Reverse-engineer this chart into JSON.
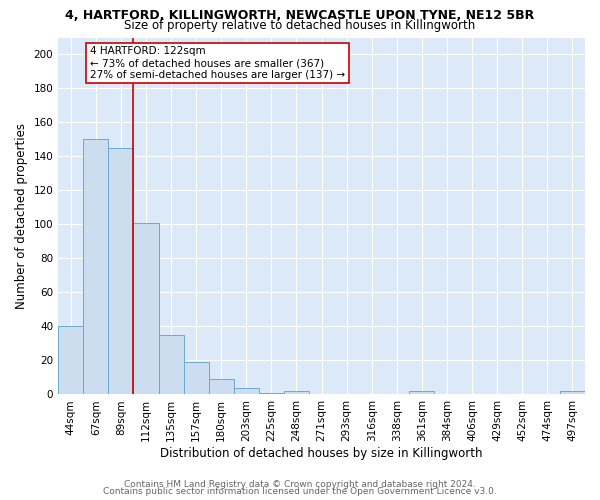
{
  "title_line1": "4, HARTFORD, KILLINGWORTH, NEWCASTLE UPON TYNE, NE12 5BR",
  "title_line2": "Size of property relative to detached houses in Killingworth",
  "xlabel": "Distribution of detached houses by size in Killingworth",
  "ylabel": "Number of detached properties",
  "categories": [
    "44sqm",
    "67sqm",
    "89sqm",
    "112sqm",
    "135sqm",
    "157sqm",
    "180sqm",
    "203sqm",
    "225sqm",
    "248sqm",
    "271sqm",
    "293sqm",
    "316sqm",
    "338sqm",
    "361sqm",
    "384sqm",
    "406sqm",
    "429sqm",
    "452sqm",
    "474sqm",
    "497sqm"
  ],
  "values": [
    40,
    150,
    145,
    101,
    35,
    19,
    9,
    4,
    1,
    2,
    0,
    0,
    0,
    0,
    2,
    0,
    0,
    0,
    0,
    0,
    2
  ],
  "bar_color": "#ccddf0",
  "bar_edge_color": "#6aaad4",
  "red_line_x": 2.5,
  "annotation_text_line1": "4 HARTFORD: 122sqm",
  "annotation_text_line2": "← 73% of detached houses are smaller (367)",
  "annotation_text_line3": "27% of semi-detached houses are larger (137) →",
  "annotation_box_color": "white",
  "annotation_box_edge_color": "#cc0000",
  "red_line_color": "#cc0000",
  "ylim": [
    0,
    210
  ],
  "yticks": [
    0,
    20,
    40,
    60,
    80,
    100,
    120,
    140,
    160,
    180,
    200
  ],
  "bg_color": "#dce9f8",
  "grid_color": "white",
  "footer_line1": "Contains HM Land Registry data © Crown copyright and database right 2024.",
  "footer_line2": "Contains public sector information licensed under the Open Government Licence v3.0.",
  "title_fontsize": 9,
  "subtitle_fontsize": 8.5,
  "axis_label_fontsize": 8.5,
  "tick_fontsize": 7.5,
  "annotation_fontsize": 7.5,
  "footer_fontsize": 6.5
}
